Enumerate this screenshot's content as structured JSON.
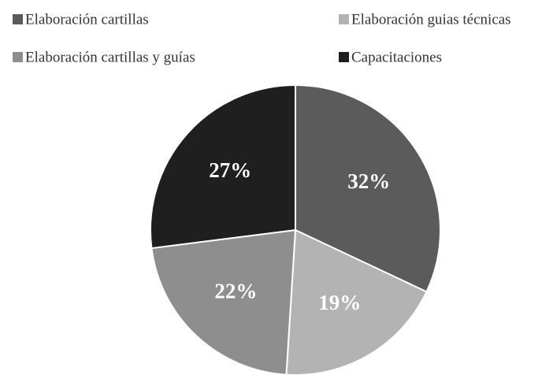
{
  "chart_data": {
    "type": "pie",
    "categories": [
      "Elaboración cartillas",
      "Elaboración guias técnicas",
      "Elaboración cartillas y guías",
      "Capacitaciones"
    ],
    "values": [
      32,
      19,
      22,
      27
    ],
    "value_labels": [
      "32%",
      "19%",
      "22%",
      "27%"
    ],
    "colors": [
      "#5b5b5b",
      "#b3b3b3",
      "#8e8e8e",
      "#1f1f1f"
    ],
    "legend": "top"
  }
}
